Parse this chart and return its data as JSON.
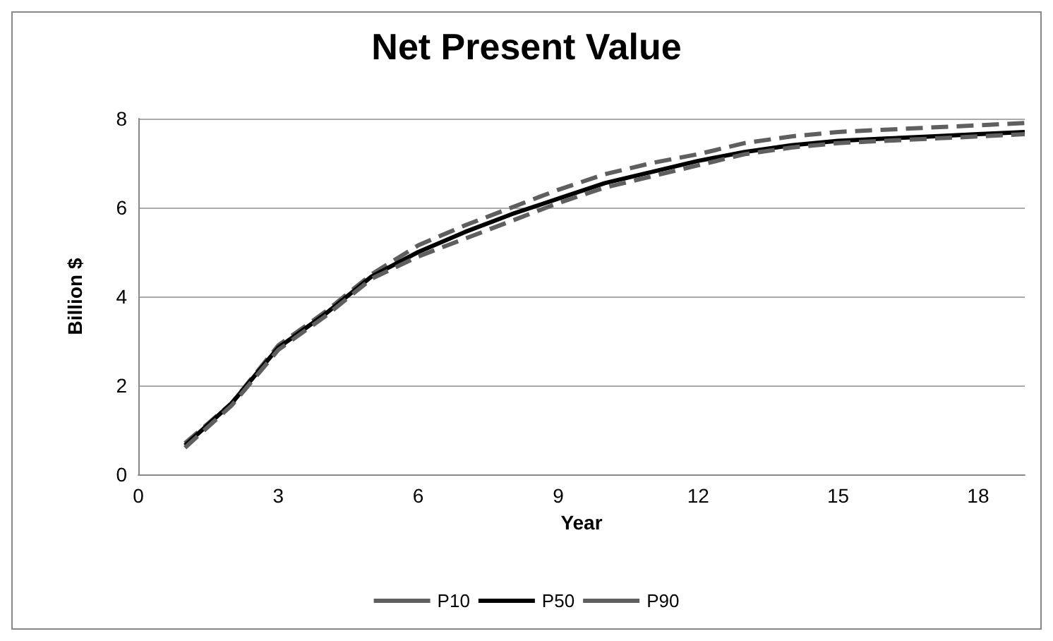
{
  "chart_data": {
    "type": "line",
    "title": "Net Present Value",
    "xlabel": "Year",
    "ylabel": "Billion $",
    "x": [
      1,
      2,
      3,
      4,
      5,
      6,
      7,
      8,
      9,
      10,
      11,
      12,
      13,
      14,
      15,
      16,
      17,
      18,
      19
    ],
    "series": [
      {
        "name": "P10",
        "color": "#5f5f5f",
        "line_style": "dashed",
        "values": [
          0.7,
          1.6,
          2.9,
          3.65,
          4.5,
          5.15,
          5.6,
          6.0,
          6.4,
          6.75,
          7.0,
          7.2,
          7.45,
          7.6,
          7.7,
          7.75,
          7.8,
          7.85,
          7.9
        ]
      },
      {
        "name": "P50",
        "color": "#000000",
        "line_style": "solid",
        "values": [
          0.65,
          1.6,
          2.85,
          3.6,
          4.45,
          5.0,
          5.45,
          5.85,
          6.2,
          6.55,
          6.8,
          7.05,
          7.25,
          7.4,
          7.5,
          7.55,
          7.6,
          7.65,
          7.7
        ]
      },
      {
        "name": "P90",
        "color": "#5f5f5f",
        "line_style": "dashed",
        "values": [
          0.6,
          1.55,
          2.8,
          3.55,
          4.4,
          4.9,
          5.3,
          5.7,
          6.1,
          6.45,
          6.7,
          6.95,
          7.2,
          7.35,
          7.45,
          7.5,
          7.55,
          7.6,
          7.65
        ]
      }
    ],
    "xlim": [
      0,
      19
    ],
    "xticks": [
      0,
      3,
      6,
      9,
      12,
      15,
      18
    ],
    "ylim": [
      0,
      8
    ],
    "yticks": [
      0,
      2,
      4,
      6,
      8
    ],
    "grid": "y",
    "legend": "bottom",
    "marker": "none"
  }
}
